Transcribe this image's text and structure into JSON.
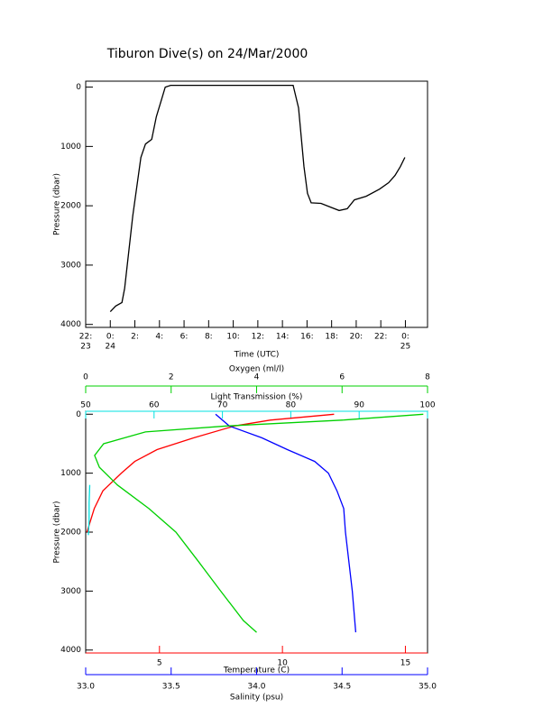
{
  "chart_data": [
    {
      "type": "line",
      "title": "Tiburon Dive(s) on 24/Mar/2000",
      "xlabel": "Time (UTC)",
      "ylabel": "Pressure (dbar)",
      "xlim": [
        -2,
        25.8
      ],
      "ylim": [
        4050,
        -100
      ],
      "xticks": [
        {
          "value": -2,
          "label": "22:"
        },
        {
          "value": 0,
          "label": "0:"
        },
        {
          "value": 2,
          "label": "2:"
        },
        {
          "value": 4,
          "label": "4:"
        },
        {
          "value": 6,
          "label": "6:"
        },
        {
          "value": 8,
          "label": "8:"
        },
        {
          "value": 10,
          "label": "10:"
        },
        {
          "value": 12,
          "label": "12:"
        },
        {
          "value": 14,
          "label": "14:"
        },
        {
          "value": 16,
          "label": "16:"
        },
        {
          "value": 18,
          "label": "18:"
        },
        {
          "value": 20,
          "label": "20:"
        },
        {
          "value": 22,
          "label": "22:"
        },
        {
          "value": 24,
          "label": "0:"
        }
      ],
      "xtick_dates": [
        {
          "value": -2,
          "label": "23"
        },
        {
          "value": 0,
          "label": "24"
        },
        {
          "value": 24,
          "label": "25"
        }
      ],
      "yticks": [
        0,
        1000,
        2000,
        3000,
        4000
      ],
      "series": [
        {
          "color": "#000000",
          "x": [
            0,
            0.44,
            0.95,
            1.17,
            1.83,
            2.49,
            2.86,
            3.37,
            3.74,
            4.18,
            4.47,
            4.91,
            14.87,
            15.31,
            15.75,
            16.04,
            16.34,
            17.14,
            17.88,
            18.61,
            19.27,
            19.85,
            20.81,
            21.9,
            22.64,
            23.15,
            23.59,
            23.96
          ],
          "values": [
            3785,
            3690,
            3630,
            3390,
            2170,
            1185,
            960,
            880,
            500,
            200,
            0,
            -30,
            -30,
            350,
            1340,
            1790,
            1950,
            1960,
            2020,
            2080,
            2050,
            1900,
            1840,
            1720,
            1610,
            1490,
            1340,
            1185
          ]
        }
      ]
    },
    {
      "type": "line",
      "ylabel": "Pressure (dbar)",
      "ylim": [
        4050,
        -50
      ],
      "yticks": [
        0,
        1000,
        2000,
        3000,
        4000
      ],
      "x_axes": [
        {
          "label": "Temperature (C)",
          "color": "#ff0000",
          "position": "bottom",
          "xlim": [
            2,
            15.9
          ],
          "xticks": [
            5,
            10,
            15
          ]
        },
        {
          "label": "Salinity (psu)",
          "color": "#0000ff",
          "position": "bottom2",
          "xlim": [
            33,
            35
          ],
          "xticks": [
            {
              "value": 33,
              "label": "33.0"
            },
            {
              "value": 33.5,
              "label": "33.5"
            },
            {
              "value": 34,
              "label": "34.0"
            },
            {
              "value": 34.5,
              "label": "34.5"
            },
            {
              "value": 35,
              "label": "35.0"
            }
          ]
        },
        {
          "label": "Light Transmission (%)",
          "color": "#00e0e0",
          "position": "top",
          "xlim": [
            50,
            100
          ],
          "xticks": [
            50,
            60,
            70,
            80,
            90,
            100
          ]
        },
        {
          "label": "Oxygen (ml/l)",
          "color": "#00d000",
          "position": "top2",
          "xlim": [
            0,
            8
          ],
          "xticks": [
            0,
            2,
            4,
            6,
            8
          ]
        }
      ],
      "series": [
        {
          "x_axis": 0,
          "color": "#ff0000",
          "pressure": [
            0,
            100,
            200,
            400,
            600,
            800,
            1000,
            1300,
            1600,
            2000
          ],
          "values": [
            12.1,
            9.5,
            8.05,
            6.4,
            4.9,
            4.0,
            3.45,
            2.7,
            2.35,
            2.05
          ]
        },
        {
          "x_axis": 1,
          "color": "#0000ff",
          "pressure": [
            0,
            200,
            400,
            600,
            800,
            1000,
            1300,
            1600,
            2000,
            2500,
            3000,
            3700
          ],
          "values": [
            33.76,
            33.84,
            34.03,
            34.18,
            34.34,
            34.42,
            34.47,
            34.51,
            34.52,
            34.54,
            34.56,
            34.58
          ]
        },
        {
          "x_axis": 2,
          "color": "#00e0e0",
          "pressure": [
            1200,
            1500,
            1800,
            2050
          ],
          "values": [
            50.6,
            50.5,
            50.5,
            50.4
          ]
        },
        {
          "x_axis": 3,
          "color": "#00d000",
          "pressure": [
            0,
            100,
            200,
            300,
            500,
            700,
            900,
            1200,
            1600,
            2000,
            2500,
            3000,
            3500,
            3700
          ],
          "values": [
            7.9,
            6.0,
            3.3,
            1.4,
            0.42,
            0.21,
            0.32,
            0.74,
            1.48,
            2.11,
            2.64,
            3.16,
            3.69,
            4.0
          ]
        }
      ]
    }
  ]
}
